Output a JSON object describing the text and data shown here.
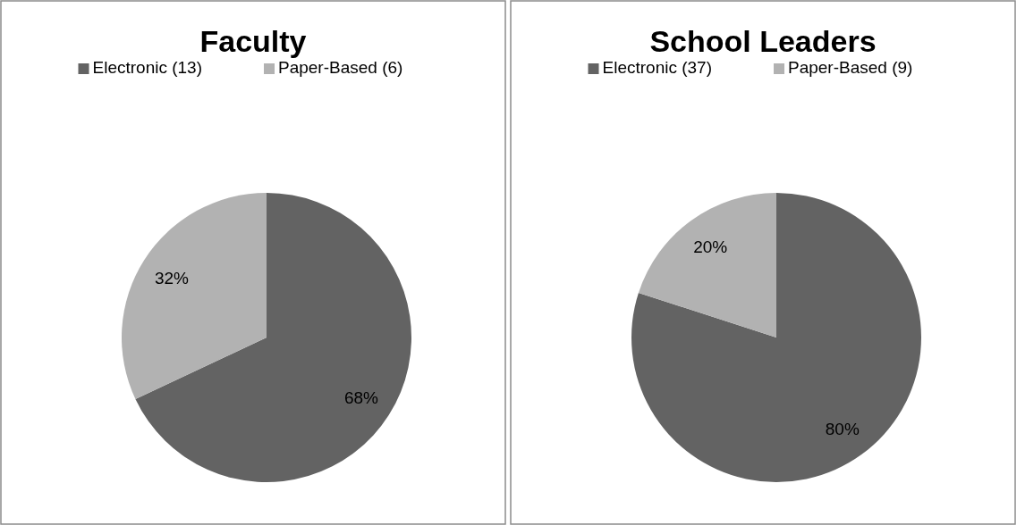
{
  "chart_data": [
    {
      "type": "pie",
      "title": "Faculty",
      "categories": [
        "Electronic (13)",
        "Paper-Based (6)"
      ],
      "values": [
        68,
        32
      ],
      "colors": [
        "#636363",
        "#b2b2b2"
      ],
      "value_labels": [
        "68%",
        "32%"
      ],
      "legend": "top"
    },
    {
      "type": "pie",
      "title": "School Leaders",
      "categories": [
        "Electronic (37)",
        "Paper-Based (9)"
      ],
      "values": [
        80,
        20
      ],
      "colors": [
        "#636363",
        "#b2b2b2"
      ],
      "value_labels": [
        "80%",
        "20%"
      ],
      "legend": "top"
    }
  ]
}
